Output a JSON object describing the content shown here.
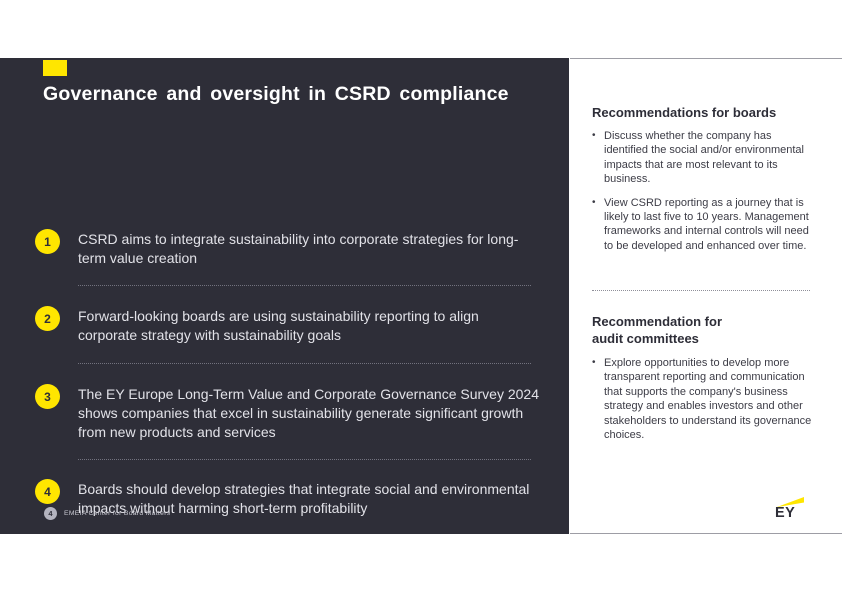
{
  "slide": {
    "title": "Governance and oversight in CSRD compliance",
    "page_number": "4",
    "footer_text": "EMEIA Center for Board Matters",
    "brand": "EY",
    "colors": {
      "panel_bg": "#2e2e38",
      "accent_yellow": "#ffe600",
      "text_on_dark": "#e2e2e8",
      "text_dark": "#2e2e38",
      "divider_on_dark": "#72727e",
      "divider_on_light": "#8f8f99",
      "rule_gray": "#9d9da5",
      "footer_badge_bg": "#b4b4bf"
    }
  },
  "left_panel": {
    "items": [
      {
        "number": "1",
        "text": "CSRD aims to integrate sustainability into corporate strategies for long-term value creation"
      },
      {
        "number": "2",
        "text": "Forward-looking boards are using sustainability reporting to align corporate strategy with sustainability goals"
      },
      {
        "number": "3",
        "text": "The EY Europe Long-Term Value and Corporate Governance Survey 2024 shows companies that excel in sustainability generate significant growth from new products and services"
      },
      {
        "number": "4",
        "text": "Boards should develop strategies that integrate social and environmental impacts without harming short-term profitability"
      }
    ]
  },
  "right_panel": {
    "bullet_char": "•",
    "sections": [
      {
        "heading": "Recommendations for boards",
        "bullets": [
          "Discuss whether the company has identified the social and/or environmental impacts that are most relevant to its business.",
          "View CSRD reporting as a journey that is likely to last five to 10 years. Management frameworks and internal controls will need to be developed and enhanced over time."
        ]
      },
      {
        "heading": "Recommendation for\naudit committees",
        "bullets": [
          "Explore opportunities to develop more transparent reporting and communication that supports the company's business strategy and enables investors and other stakeholders to understand its governance choices."
        ]
      }
    ]
  }
}
